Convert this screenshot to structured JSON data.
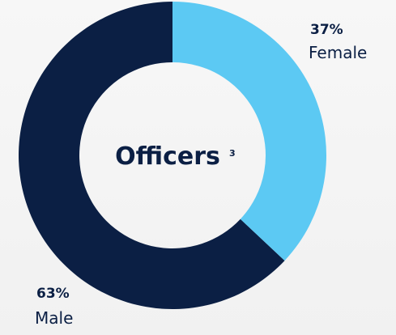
{
  "chart_data": {
    "type": "donut",
    "center_text": "Officers",
    "center_note": "3",
    "categories": [
      "Female",
      "Male"
    ],
    "values": [
      37,
      63
    ],
    "value_labels": [
      "37%",
      "63%"
    ],
    "colors": [
      "#5cc9f3",
      "#0b1f44"
    ]
  }
}
